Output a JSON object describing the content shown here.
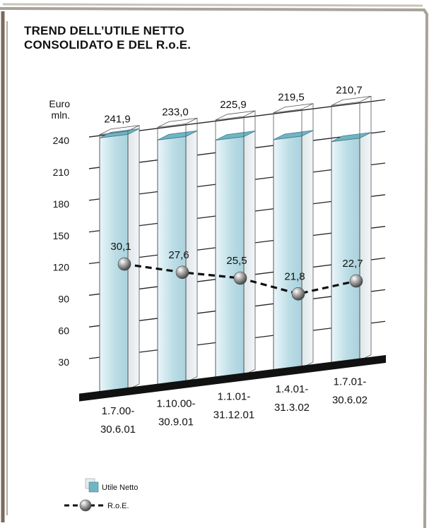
{
  "chart_data": {
    "type": "bar",
    "title_lines": [
      "TREND DELL’UTILE NETTO",
      "CONSOLIDATO E DEL R.o.E."
    ],
    "ylabel_lines": [
      "Euro",
      "mln."
    ],
    "yticks": [
      "30",
      "60",
      "90",
      "120",
      "150",
      "180",
      "210",
      "240"
    ],
    "ytick_values": [
      30,
      60,
      90,
      120,
      150,
      180,
      210,
      240
    ],
    "categories": [
      [
        "1.7.00-",
        "30.6.01"
      ],
      [
        "1.10.00-",
        "30.9.01"
      ],
      [
        "1.1.01-",
        "31.12.01"
      ],
      [
        "1.4.01-",
        "31.3.02"
      ],
      [
        "1.7.01-",
        "30.6.02"
      ]
    ],
    "series": [
      {
        "name": "Utile Netto",
        "kind": "bar",
        "values": [
          241.9,
          233.0,
          225.9,
          219.5,
          210.7
        ],
        "labels": [
          "241,9",
          "233,0",
          "225,9",
          "219,5",
          "210,7"
        ]
      },
      {
        "name": "R.o.E.",
        "kind": "line",
        "values": [
          30.1,
          27.6,
          25.5,
          21.8,
          22.7
        ],
        "labels": [
          "30,1",
          "27,6",
          "25,5",
          "21,8",
          "22,7"
        ]
      }
    ],
    "legend": {
      "position": "bottom-left",
      "items": [
        "Utile Netto",
        "R.o.E."
      ]
    },
    "grid": true,
    "colors": {
      "bar_fill": "#bcdde6",
      "bar_top": "#6fb5c4",
      "marker": "#8a8a8a",
      "baseline": "#111111"
    }
  }
}
